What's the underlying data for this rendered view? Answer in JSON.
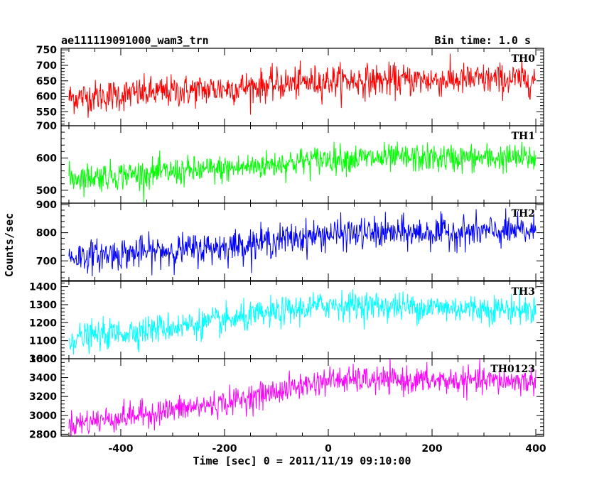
{
  "header": {
    "title": "ae111119091000_wam3_trn",
    "bin_time": "Bin time: 1.0 s"
  },
  "chart_data": {
    "type": "line",
    "xlabel": "Time [sec] 0 = 2011/11/19 09:10:00",
    "ylabel": "Counts/sec",
    "xlim": [
      -515,
      415
    ],
    "x_ticks": [
      -400,
      -200,
      0,
      200,
      400
    ],
    "x_range": [
      -500,
      400
    ],
    "bin_time_s": 1.0,
    "panels": [
      {
        "name": "TH0",
        "color": "#ff0000",
        "ylim": [
          505,
          755
        ],
        "y_ticks": [
          550,
          600,
          650,
          700,
          750
        ],
        "trend": {
          "x": [
            -500,
            -200,
            0,
            400
          ],
          "y": [
            595,
            625,
            650,
            655
          ]
        },
        "noise_sd": 26
      },
      {
        "name": "TH1",
        "color": "#00ff00",
        "ylim": [
          460,
          700
        ],
        "y_ticks": [
          500,
          600,
          700
        ],
        "trend": {
          "x": [
            -500,
            -200,
            0,
            400
          ],
          "y": [
            538,
            565,
            598,
            600
          ]
        },
        "noise_sd": 22
      },
      {
        "name": "TH2",
        "color": "#0000ff",
        "ylim": [
          630,
          905
        ],
        "y_ticks": [
          700,
          800,
          900
        ],
        "trend": {
          "x": [
            -500,
            -200,
            0,
            400
          ],
          "y": [
            713,
            750,
            795,
            805
          ]
        },
        "noise_sd": 28
      },
      {
        "name": "TH3",
        "color": "#00ffff",
        "ylim": [
          1000,
          1430
        ],
        "y_ticks": [
          1000,
          1100,
          1200,
          1300,
          1400
        ],
        "trend": {
          "x": [
            -500,
            -200,
            0,
            400
          ],
          "y": [
            1110,
            1210,
            1300,
            1270
          ]
        },
        "noise_sd": 40
      },
      {
        "name": "TH0123",
        "color": "#ff00ff",
        "ylim": [
          2780,
          3600
        ],
        "y_ticks": [
          2800,
          3000,
          3200,
          3400,
          3600
        ],
        "trend": {
          "x": [
            -500,
            -200,
            0,
            400
          ],
          "y": [
            2905,
            3130,
            3375,
            3360
          ]
        },
        "noise_sd": 70
      }
    ]
  }
}
